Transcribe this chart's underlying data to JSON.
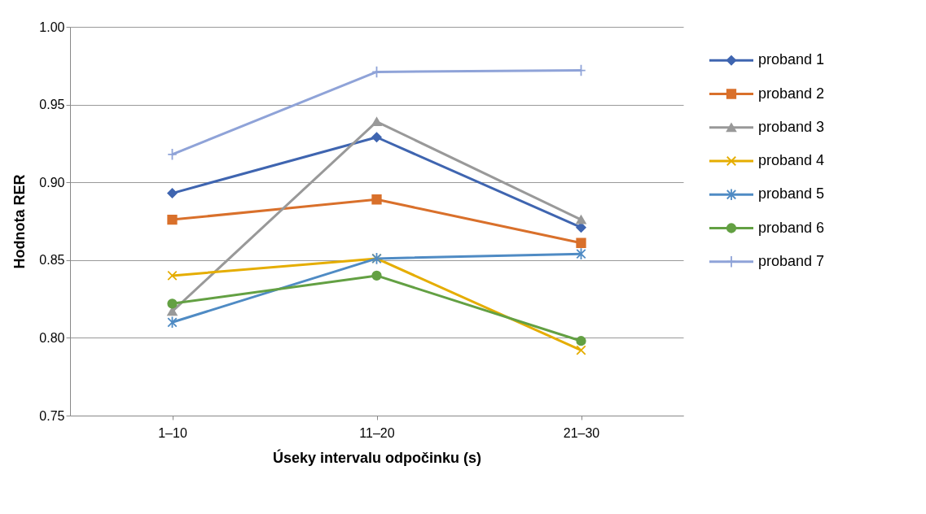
{
  "chart_data": {
    "type": "line",
    "xlabel": "Úseky intervalu odpočinku (s)",
    "ylabel": "Hodnota RER",
    "categories": [
      "1–10",
      "11–20",
      "21–30"
    ],
    "ylim": [
      0.75,
      1.0
    ],
    "yticks": [
      0.75,
      {
        "value": 0.8,
        "label": "0.80"
      },
      0.85,
      {
        "value": 0.9,
        "label": "0.90"
      },
      0.95,
      {
        "value": 1.0,
        "label": "1.00"
      }
    ],
    "grid": "y",
    "legend": "right",
    "line_style": "solid",
    "series": [
      {
        "name": "proband 1",
        "color": "#3f65b0",
        "marker": "diamond",
        "values": [
          0.893,
          0.929,
          0.871
        ]
      },
      {
        "name": "proband 2",
        "color": "#d9702b",
        "marker": "square",
        "values": [
          0.876,
          0.889,
          0.861
        ]
      },
      {
        "name": "proband 3",
        "color": "#999999",
        "marker": "triangle",
        "values": [
          0.817,
          0.939,
          0.876
        ]
      },
      {
        "name": "proband 4",
        "color": "#e5ad00",
        "marker": "x",
        "values": [
          0.84,
          0.851,
          0.792
        ]
      },
      {
        "name": "proband 5",
        "color": "#4f8bc4",
        "marker": "cross",
        "values": [
          0.81,
          0.851,
          0.854
        ]
      },
      {
        "name": "proband 6",
        "color": "#63a043",
        "marker": "circle",
        "values": [
          0.822,
          0.84,
          0.798
        ]
      },
      {
        "name": "proband 7",
        "color": "#8fa3d8",
        "marker": "plus",
        "values": [
          0.918,
          0.971,
          0.972
        ]
      }
    ]
  }
}
